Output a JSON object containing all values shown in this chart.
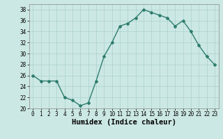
{
  "x": [
    0,
    1,
    2,
    3,
    4,
    5,
    6,
    7,
    8,
    9,
    10,
    11,
    12,
    13,
    14,
    15,
    16,
    17,
    18,
    19,
    20,
    21,
    22,
    23
  ],
  "y": [
    26,
    25,
    25,
    25,
    22,
    21.5,
    20.5,
    21,
    25,
    29.5,
    32,
    35,
    35.5,
    36.5,
    38,
    37.5,
    37,
    36.5,
    35,
    36,
    34,
    31.5,
    29.5,
    28
  ],
  "line_color": "#2e7d6e",
  "marker": "D",
  "marker_size": 2.0,
  "bg_color": "#cce8e4",
  "grid_color": "#aad0cc",
  "xlabel": "Humidex (Indice chaleur)",
  "xlim": [
    -0.5,
    23.5
  ],
  "ylim": [
    20,
    39
  ],
  "yticks": [
    20,
    22,
    24,
    26,
    28,
    30,
    32,
    34,
    36,
    38
  ],
  "xticks": [
    0,
    1,
    2,
    3,
    4,
    5,
    6,
    7,
    8,
    9,
    10,
    11,
    12,
    13,
    14,
    15,
    16,
    17,
    18,
    19,
    20,
    21,
    22,
    23
  ],
  "tick_fontsize": 5.5,
  "xlabel_fontsize": 7.5,
  "line_width": 1.0
}
